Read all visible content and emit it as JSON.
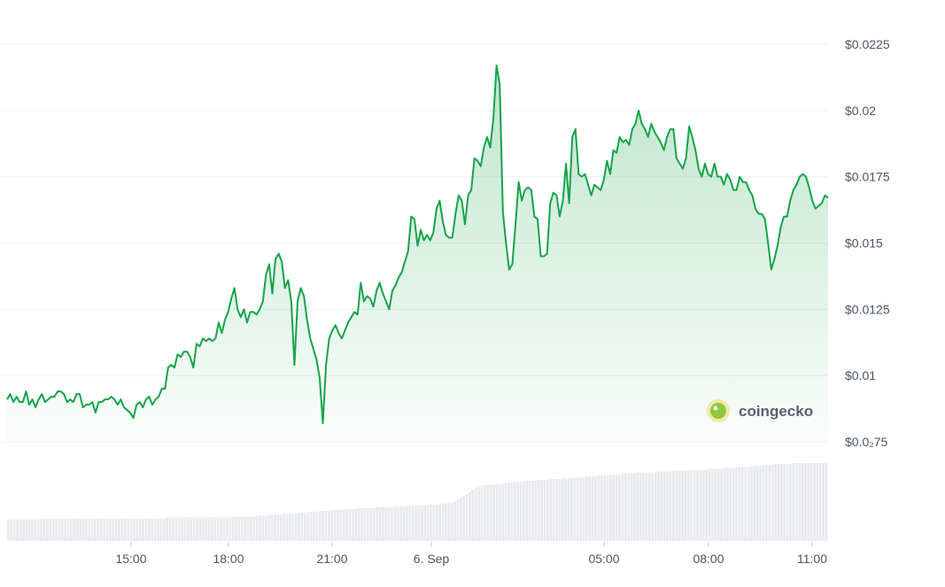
{
  "chart_data": {
    "type": "area",
    "title": "",
    "xlabel": "",
    "ylabel": "",
    "y_ticks": [
      {
        "value": 0.0225,
        "label": "$0.0225"
      },
      {
        "value": 0.02,
        "label": "$0.02"
      },
      {
        "value": 0.0175,
        "label": "$0.0175"
      },
      {
        "value": 0.015,
        "label": "$0.015"
      },
      {
        "value": 0.0125,
        "label": "$0.0125"
      },
      {
        "value": 0.01,
        "label": "$0.01"
      },
      {
        "value": 0.0075,
        "label": "$0.0₂75"
      }
    ],
    "x_ticks": [
      "15:00",
      "18:00",
      "21:00",
      "6. Sep",
      "05:00",
      "08:00",
      "11:00"
    ],
    "ylim": [
      0.0075,
      0.0225
    ],
    "grid": true,
    "line_color": "#16a34a",
    "fill_color": "#16a34a",
    "volume_color": "#e8eaee",
    "watermark": "coingecko",
    "series": [
      {
        "values": [
          0.0091,
          0.0093,
          0.009,
          0.0092,
          0.009,
          0.009,
          0.0094,
          0.0089,
          0.0091,
          0.0088,
          0.0091,
          0.0093,
          0.009,
          0.0091,
          0.0092,
          0.0092,
          0.0094,
          0.0094,
          0.0093,
          0.009,
          0.0091,
          0.009,
          0.0093,
          0.0093,
          0.0088,
          0.0089,
          0.0089,
          0.009,
          0.0086,
          0.009,
          0.009,
          0.0091,
          0.0091,
          0.0092,
          0.0091,
          0.0089,
          0.0091,
          0.0088,
          0.0087,
          0.0086,
          0.0084,
          0.0089,
          0.009,
          0.0088,
          0.0091,
          0.0092,
          0.0089,
          0.0091,
          0.0092,
          0.0095,
          0.0095,
          0.0103,
          0.0104,
          0.0103,
          0.0108,
          0.0107,
          0.0109,
          0.0109,
          0.0107,
          0.0103,
          0.0112,
          0.0111,
          0.0114,
          0.0113,
          0.0114,
          0.0113,
          0.0114,
          0.012,
          0.0116,
          0.0121,
          0.0124,
          0.0129,
          0.0133,
          0.0125,
          0.0122,
          0.0125,
          0.012,
          0.0124,
          0.0124,
          0.0123,
          0.0125,
          0.0128,
          0.0138,
          0.0142,
          0.0131,
          0.0144,
          0.0146,
          0.0143,
          0.0133,
          0.0136,
          0.0128,
          0.0104,
          0.0128,
          0.0133,
          0.013,
          0.0121,
          0.0114,
          0.011,
          0.0106,
          0.0099,
          0.0082,
          0.0104,
          0.0114,
          0.0117,
          0.0119,
          0.0116,
          0.0114,
          0.0117,
          0.012,
          0.0122,
          0.0124,
          0.0123,
          0.0135,
          0.0128,
          0.013,
          0.0129,
          0.0126,
          0.0132,
          0.0135,
          0.0131,
          0.0128,
          0.0125,
          0.0132,
          0.0134,
          0.0137,
          0.0139,
          0.0143,
          0.0147,
          0.016,
          0.0159,
          0.0149,
          0.0155,
          0.0151,
          0.0153,
          0.0151,
          0.0154,
          0.0163,
          0.0166,
          0.0158,
          0.0153,
          0.0152,
          0.0152,
          0.0161,
          0.0168,
          0.0166,
          0.0157,
          0.0168,
          0.017,
          0.0182,
          0.0181,
          0.0179,
          0.0186,
          0.019,
          0.0186,
          0.0197,
          0.0217,
          0.021,
          0.0162,
          0.015,
          0.014,
          0.0142,
          0.0157,
          0.0173,
          0.0166,
          0.017,
          0.0171,
          0.017,
          0.016,
          0.0159,
          0.0145,
          0.0145,
          0.0146,
          0.0165,
          0.0169,
          0.0168,
          0.016,
          0.0166,
          0.018,
          0.0165,
          0.019,
          0.0193,
          0.0176,
          0.0175,
          0.0176,
          0.0172,
          0.0168,
          0.0172,
          0.0171,
          0.017,
          0.0174,
          0.0181,
          0.0176,
          0.0185,
          0.0184,
          0.019,
          0.0188,
          0.0189,
          0.0187,
          0.0193,
          0.0195,
          0.02,
          0.0195,
          0.0193,
          0.019,
          0.0195,
          0.0192,
          0.019,
          0.0188,
          0.0185,
          0.019,
          0.0193,
          0.0193,
          0.0182,
          0.018,
          0.0178,
          0.0182,
          0.0194,
          0.019,
          0.0185,
          0.0178,
          0.0175,
          0.018,
          0.0176,
          0.0175,
          0.018,
          0.0175,
          0.0175,
          0.0172,
          0.0176,
          0.0174,
          0.017,
          0.017,
          0.0175,
          0.0173,
          0.0173,
          0.017,
          0.0168,
          0.0163,
          0.0161,
          0.0161,
          0.0159,
          0.015,
          0.014,
          0.0144,
          0.0149,
          0.0156,
          0.016,
          0.016,
          0.0166,
          0.017,
          0.0172,
          0.0175,
          0.0176,
          0.0175,
          0.0171,
          0.0166,
          0.0163,
          0.0164,
          0.0165,
          0.0168,
          0.0167
        ],
        "vmin": 0.0082,
        "vmax": 0.0217
      }
    ],
    "volume": {
      "values": [
        0.23,
        0.23,
        0.23,
        0.23,
        0.23,
        0.23,
        0.23,
        0.23,
        0.23,
        0.23,
        0.23,
        0.24,
        0.24,
        0.24,
        0.24,
        0.24,
        0.24,
        0.24,
        0.24,
        0.24,
        0.24,
        0.24,
        0.24,
        0.24,
        0.24,
        0.24,
        0.24,
        0.24,
        0.24,
        0.24,
        0.24,
        0.24,
        0.24,
        0.24,
        0.24,
        0.24,
        0.24,
        0.24,
        0.24,
        0.24,
        0.24,
        0.24,
        0.24,
        0.24,
        0.24,
        0.24,
        0.24,
        0.24,
        0.24,
        0.24,
        0.24,
        0.24,
        0.24,
        0.25,
        0.25,
        0.25,
        0.25,
        0.25,
        0.25,
        0.25,
        0.25,
        0.25,
        0.25,
        0.25,
        0.25,
        0.25,
        0.25,
        0.25,
        0.25,
        0.25,
        0.25,
        0.25,
        0.25,
        0.25,
        0.25,
        0.26,
        0.26,
        0.26,
        0.26,
        0.26,
        0.26,
        0.26,
        0.26,
        0.27,
        0.27,
        0.27,
        0.27,
        0.28,
        0.28,
        0.28,
        0.28,
        0.28,
        0.29,
        0.29,
        0.29,
        0.29,
        0.29,
        0.3,
        0.3,
        0.3,
        0.31,
        0.31,
        0.31,
        0.31,
        0.32,
        0.32,
        0.32,
        0.32,
        0.33,
        0.33,
        0.33,
        0.33,
        0.34,
        0.34,
        0.34,
        0.34,
        0.35,
        0.35,
        0.35,
        0.35,
        0.35,
        0.35,
        0.35,
        0.36,
        0.36,
        0.36,
        0.36,
        0.36,
        0.36,
        0.37,
        0.37,
        0.37,
        0.37,
        0.37,
        0.37,
        0.38,
        0.38,
        0.38,
        0.38,
        0.38,
        0.38,
        0.39,
        0.39,
        0.39,
        0.39,
        0.4,
        0.4,
        0.41,
        0.41,
        0.42,
        0.44,
        0.46,
        0.48,
        0.5,
        0.52,
        0.55,
        0.57,
        0.58,
        0.59,
        0.59,
        0.6,
        0.6,
        0.6,
        0.61,
        0.61,
        0.61,
        0.62,
        0.62,
        0.62,
        0.63,
        0.63,
        0.63,
        0.63,
        0.64,
        0.64,
        0.64,
        0.64,
        0.65,
        0.65,
        0.65,
        0.65,
        0.66,
        0.66,
        0.66,
        0.66,
        0.67,
        0.67,
        0.67,
        0.67,
        0.68,
        0.68,
        0.68,
        0.68,
        0.69,
        0.69,
        0.69,
        0.69,
        0.7,
        0.7,
        0.7,
        0.7,
        0.71,
        0.71,
        0.71,
        0.71,
        0.72,
        0.72,
        0.72,
        0.72,
        0.72,
        0.73,
        0.73,
        0.73,
        0.73,
        0.73,
        0.73,
        0.74,
        0.74,
        0.74,
        0.74,
        0.74,
        0.74,
        0.75,
        0.75,
        0.75,
        0.75,
        0.75,
        0.75,
        0.76,
        0.76,
        0.76,
        0.76,
        0.76,
        0.76,
        0.77,
        0.77,
        0.77,
        0.77,
        0.77,
        0.78,
        0.78,
        0.78,
        0.78,
        0.78,
        0.79,
        0.79,
        0.79,
        0.79,
        0.8,
        0.8,
        0.8,
        0.8,
        0.81,
        0.81,
        0.81,
        0.81,
        0.82,
        0.82,
        0.82,
        0.82,
        0.82,
        0.82,
        0.83,
        0.83,
        0.83,
        0.83,
        0.83,
        0.83,
        0.83,
        0.83,
        0.83,
        0.83,
        0.83,
        0.83
      ]
    }
  }
}
